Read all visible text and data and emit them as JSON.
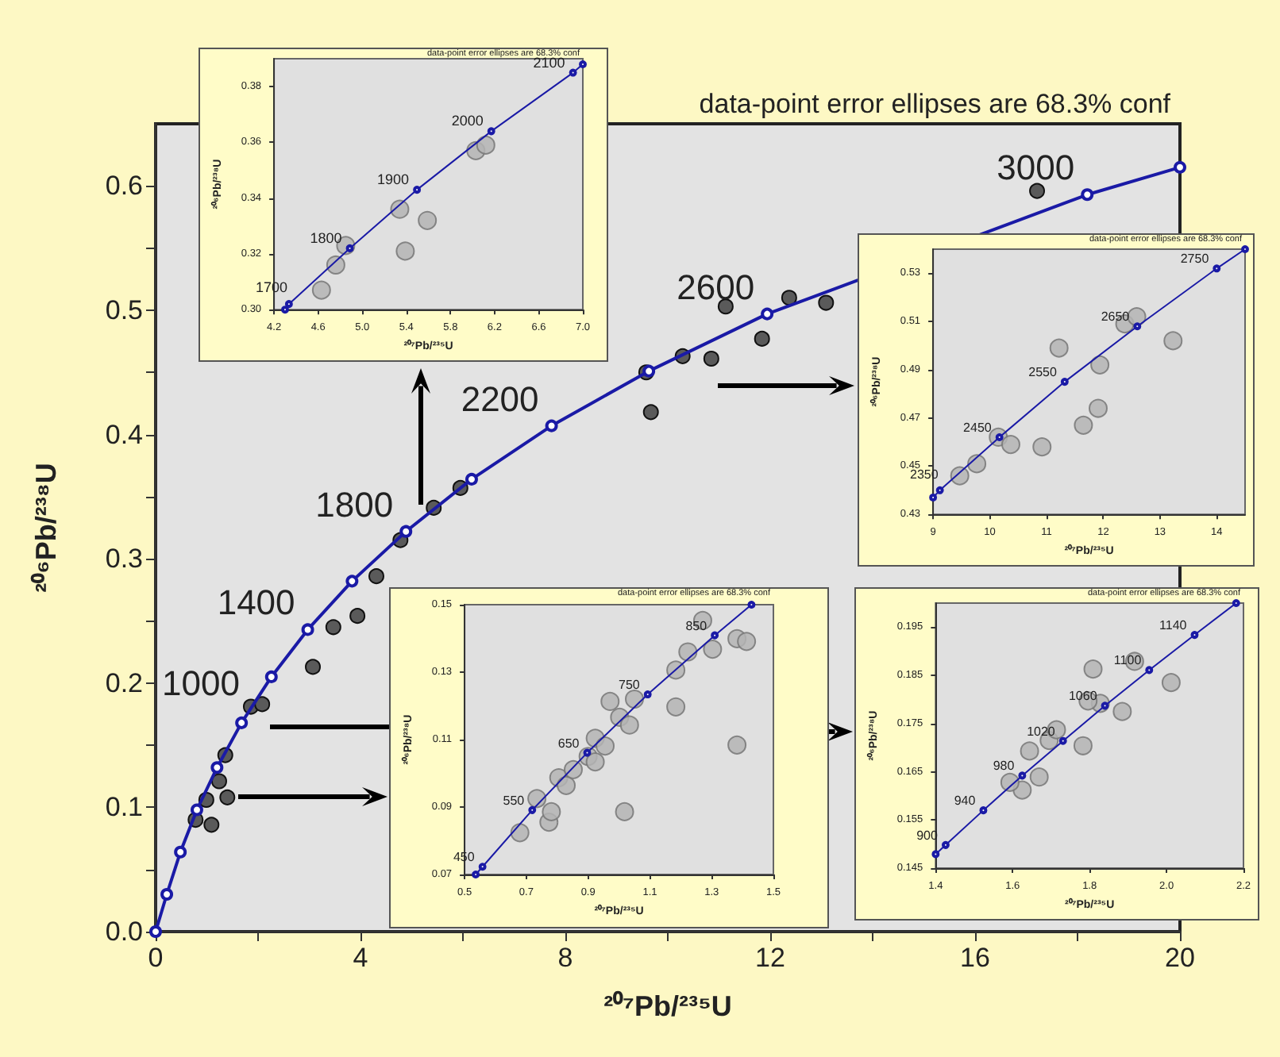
{
  "chart_data": [
    {
      "type": "scatter",
      "xlabel": "²⁰⁷Pb/²³⁵U",
      "ylabel": "²⁰⁶Pb/²³⁸U",
      "xlim": [
        0,
        20
      ],
      "ylim": [
        0,
        0.65
      ],
      "xticks": [
        0,
        {
          "value": 2,
          "label": null
        },
        4,
        {
          "value": 6,
          "label": null
        },
        8,
        {
          "value": 10,
          "label": null
        },
        12,
        {
          "value": 14,
          "label": null
        },
        16,
        {
          "value": 18,
          "label": null
        },
        20
      ],
      "yticks": [
        {
          "value": 0,
          "label": "0.0"
        },
        {
          "value": 0.05,
          "label": null
        },
        0.1,
        {
          "value": 0.15,
          "label": null
        },
        0.2,
        {
          "value": 0.25,
          "label": null
        },
        0.3,
        {
          "value": 0.35,
          "label": null
        },
        0.4,
        {
          "value": 0.45,
          "label": null
        },
        0.5,
        {
          "value": 0.55,
          "label": null
        },
        0.6
      ],
      "series": [
        {
          "type": "line",
          "color": "#1a1aa6",
          "marker": "circle",
          "x": [
            0,
            0.218,
            0.483,
            0.806,
            1.199,
            1.677,
            2.26,
            2.97,
            3.835,
            4.887,
            6.17,
            7.73,
            9.63,
            11.94,
            14.76,
            18.19,
            20
          ],
          "values": [
            0,
            0.03,
            0.064,
            0.098,
            0.132,
            0.168,
            0.205,
            0.243,
            0.282,
            0.322,
            0.364,
            0.407,
            0.451,
            0.497,
            null,
            0.593,
            0.615
          ]
        },
        {
          "type": "scatter",
          "color": "#5a5a5a",
          "marker": "circle",
          "x": [
            12.37,
            11.84,
            13.09,
            11.13,
            9.58,
            9.67,
            10.29,
            10.85,
            17.21,
            5.95,
            5.43,
            4.78,
            4.31,
            3.47,
            3.94,
            3.07,
            1.86,
            2.08,
            1.36,
            1.24,
            1.4,
            0.99,
            0.78,
            1.09
          ],
          "values": [
            0.51,
            0.477,
            0.506,
            0.503,
            0.45,
            0.418,
            0.463,
            0.461,
            0.596,
            0.357,
            0.341,
            0.315,
            0.286,
            0.245,
            0.254,
            0.213,
            0.181,
            0.183,
            0.142,
            0.121,
            0.108,
            0.106,
            0.09,
            0.086
          ]
        }
      ],
      "annotations": [
        "data-point error ellipses are 68.3% conf",
        {
          "text": "1000",
          "x": 1.677,
          "y": 0.168
        },
        {
          "text": "1400",
          "x": 2.97,
          "y": 0.243
        },
        {
          "text": "1800",
          "x": 4.887,
          "y": 0.322
        },
        {
          "text": "2200",
          "x": 7.73,
          "y": 0.407
        },
        {
          "text": "2600",
          "x": 11.94,
          "y": 0.497
        },
        {
          "text": "3000",
          "x": 18.19,
          "y": 0.593
        }
      ]
    },
    {
      "type": "scatter",
      "xlabel": "²⁰⁷Pb/²³⁵U",
      "ylabel": "²⁰⁶Pb/²³⁸U",
      "xlim": [
        4.2,
        7.0
      ],
      "ylim": [
        0.3,
        0.39
      ],
      "xticks": [
        4.2,
        4.6,
        {
          "value": 5,
          "label": "5.0"
        },
        5.4,
        5.8,
        6.2,
        6.6,
        {
          "value": 7,
          "label": "7.0"
        }
      ],
      "yticks": [
        {
          "value": 0.3,
          "label": "0.30"
        },
        0.32,
        0.34,
        0.36,
        0.38
      ],
      "series": [
        {
          "type": "line",
          "color": "#1a1aa6",
          "marker": "circle",
          "x": [
            4.3,
            4.335,
            4.887,
            5.496,
            6.17,
            6.911,
            7.0
          ],
          "values": [
            0.3,
            0.302,
            0.322,
            0.343,
            0.364,
            0.385,
            0.388
          ]
        },
        {
          "type": "scatter",
          "color": "#b4b4b4",
          "marker": "circle",
          "x": [
            4.76,
            4.63,
            4.85,
            5.34,
            5.39,
            5.59,
            6.03,
            6.12
          ],
          "values": [
            0.316,
            0.307,
            0.323,
            0.336,
            0.321,
            0.332,
            0.357,
            0.359
          ]
        }
      ],
      "annotations": [
        "data-point error ellipses are 68.3% conf",
        {
          "text": "1700",
          "x": 4.335,
          "y": 0.302
        },
        {
          "text": "1800",
          "x": 4.887,
          "y": 0.322
        },
        {
          "text": "1900",
          "x": 5.496,
          "y": 0.343
        },
        {
          "text": "2000",
          "x": 6.17,
          "y": 0.364
        },
        {
          "text": "2100",
          "x": 6.911,
          "y": 0.385
        }
      ]
    },
    {
      "type": "scatter",
      "xlabel": "²⁰⁷Pb/²³⁵U",
      "ylabel": "²⁰⁶Pb/²³⁸U",
      "xlim": [
        9,
        14.5
      ],
      "ylim": [
        0.43,
        0.54
      ],
      "xticks": [
        9,
        10,
        11,
        12,
        13,
        14
      ],
      "yticks": [
        0.43,
        0.45,
        0.47,
        0.49,
        0.51,
        0.53
      ],
      "series": [
        {
          "type": "line",
          "color": "#1a1aa6",
          "marker": "circle",
          "x": [
            9.0,
            9.12,
            10.17,
            11.32,
            12.6,
            14.0,
            14.5
          ],
          "values": [
            0.437,
            0.44,
            0.462,
            0.485,
            0.508,
            0.532,
            0.54
          ]
        },
        {
          "type": "scatter",
          "color": "#b4b4b4",
          "marker": "circle",
          "x": [
            9.47,
            9.77,
            10.15,
            10.37,
            10.92,
            11.22,
            11.91,
            11.65,
            11.94,
            12.38,
            12.59,
            13.23
          ],
          "values": [
            0.446,
            0.451,
            0.462,
            0.459,
            0.458,
            0.499,
            0.474,
            0.467,
            0.492,
            0.509,
            0.512,
            0.502
          ]
        }
      ],
      "annotations": [
        "data-point error ellipses are 68.3% conf",
        {
          "text": "2350",
          "x": 9.12,
          "y": 0.44
        },
        {
          "text": "2450",
          "x": 10.17,
          "y": 0.462
        },
        {
          "text": "2550",
          "x": 11.32,
          "y": 0.485
        },
        {
          "text": "2650",
          "x": 12.6,
          "y": 0.508
        },
        {
          "text": "2750",
          "x": 14.0,
          "y": 0.532
        }
      ]
    },
    {
      "type": "scatter",
      "xlabel": "²⁰⁷Pb/²³⁵U",
      "ylabel": "²⁰⁶Pb/²³⁸U",
      "xlim": [
        0.5,
        1.5
      ],
      "ylim": [
        0.07,
        0.15
      ],
      "xticks": [
        0.5,
        0.7,
        0.9,
        1.1,
        1.3,
        1.5
      ],
      "yticks": [
        0.07,
        0.09,
        0.11,
        0.13,
        0.15
      ],
      "series": [
        {
          "type": "line",
          "color": "#1a1aa6",
          "marker": "circle",
          "x": [
            0.536,
            0.558,
            0.719,
            0.897,
            1.093,
            1.31,
            1.429
          ],
          "values": [
            0.07,
            0.0723,
            0.0891,
            0.1061,
            0.1234,
            0.1409,
            0.15
          ]
        },
        {
          "type": "scatter",
          "color": "#b4b4b4",
          "marker": "circle",
          "x": [
            0.679,
            0.734,
            0.773,
            0.781,
            0.805,
            0.829,
            0.852,
            0.9,
            0.923,
            0.955,
            0.923,
            0.971,
            1.002,
            1.034,
            1.05,
            1.018,
            1.184,
            1.184,
            1.223,
            1.271,
            1.303,
            1.382,
            1.413,
            1.382
          ],
          "values": [
            0.0824,
            0.0925,
            0.0855,
            0.0886,
            0.0987,
            0.0964,
            0.1011,
            0.105,
            0.1104,
            0.1081,
            0.1034,
            0.1213,
            0.1166,
            0.1143,
            0.122,
            0.0886,
            0.1197,
            0.1306,
            0.136,
            0.1453,
            0.1368,
            0.1399,
            0.1391,
            0.1084
          ]
        }
      ],
      "annotations": [
        "data-point error ellipses are 68.3% conf",
        {
          "text": "450",
          "x": 0.558,
          "y": 0.0723
        },
        {
          "text": "550",
          "x": 0.719,
          "y": 0.0891
        },
        {
          "text": "650",
          "x": 0.897,
          "y": 0.1061
        },
        {
          "text": "750",
          "x": 1.093,
          "y": 0.1234
        },
        {
          "text": "850",
          "x": 1.31,
          "y": 0.1409
        }
      ]
    },
    {
      "type": "scatter",
      "xlabel": "²⁰⁷Pb/²³⁵U",
      "ylabel": "²⁰⁶Pb/²³⁸U",
      "xlim": [
        1.4,
        2.2
      ],
      "ylim": [
        0.145,
        0.2
      ],
      "xticks": [
        1.4,
        1.6,
        1.8,
        {
          "value": 2,
          "label": "2.0"
        },
        2.2
      ],
      "yticks": [
        0.145,
        0.155,
        0.165,
        0.175,
        0.185,
        0.195
      ],
      "series": [
        {
          "type": "line",
          "color": "#1a1aa6",
          "marker": "circle",
          "x": [
            1.4,
            1.426,
            1.524,
            1.625,
            1.731,
            1.84,
            1.955,
            2.073,
            2.181
          ],
          "values": [
            0.1479,
            0.1498,
            0.157,
            0.1642,
            0.1714,
            0.1787,
            0.1861,
            0.1934,
            0.2
          ]
        },
        {
          "type": "scatter",
          "color": "#b4b4b4",
          "marker": "circle",
          "x": [
            1.809,
            1.917,
            2.012,
            1.828,
            1.885,
            1.783,
            1.695,
            1.644,
            1.714,
            1.669,
            1.625,
            1.593,
            1.796
          ],
          "values": [
            0.1863,
            0.1879,
            0.1835,
            0.1792,
            0.1775,
            0.1704,
            0.1715,
            0.1693,
            0.1737,
            0.1639,
            0.1612,
            0.1628,
            0.1797
          ]
        }
      ],
      "annotations": [
        "data-point error ellipses are 68.3% conf",
        {
          "text": "900",
          "x": 1.426,
          "y": 0.1498
        },
        {
          "text": "940",
          "x": 1.524,
          "y": 0.157
        },
        {
          "text": "980",
          "x": 1.625,
          "y": 0.1642
        },
        {
          "text": "1020",
          "x": 1.731,
          "y": 0.1714
        },
        {
          "text": "1060",
          "x": 1.84,
          "y": 0.1787
        },
        {
          "text": "1100",
          "x": 1.955,
          "y": 0.1861
        },
        {
          "text": "1140",
          "x": 2.073,
          "y": 0.1934
        }
      ]
    }
  ]
}
